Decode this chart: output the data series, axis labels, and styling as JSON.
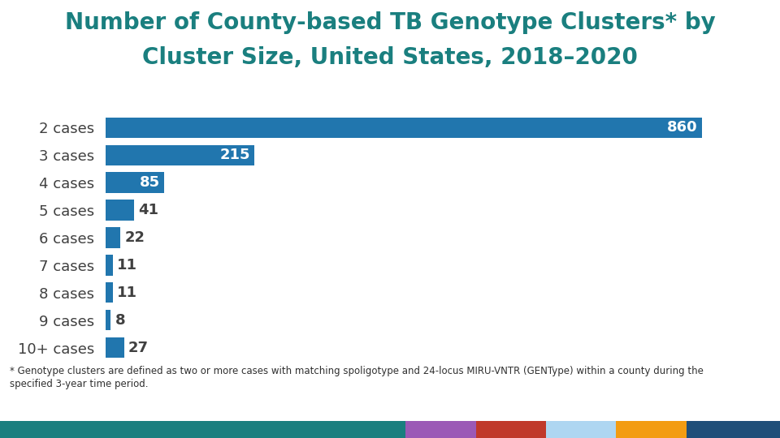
{
  "title_line1": "Number of County-based TB Genotype Clusters* by",
  "title_line2": "Cluster Size, United States, 2018–2020",
  "title_color": "#1a7f7f",
  "categories": [
    "2 cases",
    "3 cases",
    "4 cases",
    "5 cases",
    "6 cases",
    "7 cases",
    "8 cases",
    "9 cases",
    "10+ cases"
  ],
  "values": [
    860,
    215,
    85,
    41,
    22,
    11,
    11,
    8,
    27
  ],
  "bar_color": "#2176ae",
  "label_color_inside": "#ffffff",
  "label_color_outside": "#404040",
  "inside_threshold": 50,
  "footnote_line1": "* Genotype clusters are defined as two or more cases with matching spoligotype and 24-locus MIRU-VNTR (GENType) within a county during the",
  "footnote_line2": "specified 3-year time period.",
  "background_color": "#ffffff",
  "bottom_bar_colors": [
    "#1a7f7f",
    "#9b59b6",
    "#c0392b",
    "#aed6f1",
    "#f39c12",
    "#1f4e79"
  ],
  "bottom_bar_widths": [
    0.52,
    0.09,
    0.09,
    0.09,
    0.09,
    0.12
  ],
  "xlim": [
    0,
    950
  ],
  "label_fontsize": 13,
  "tick_fontsize": 13,
  "title_fontsize": 20
}
